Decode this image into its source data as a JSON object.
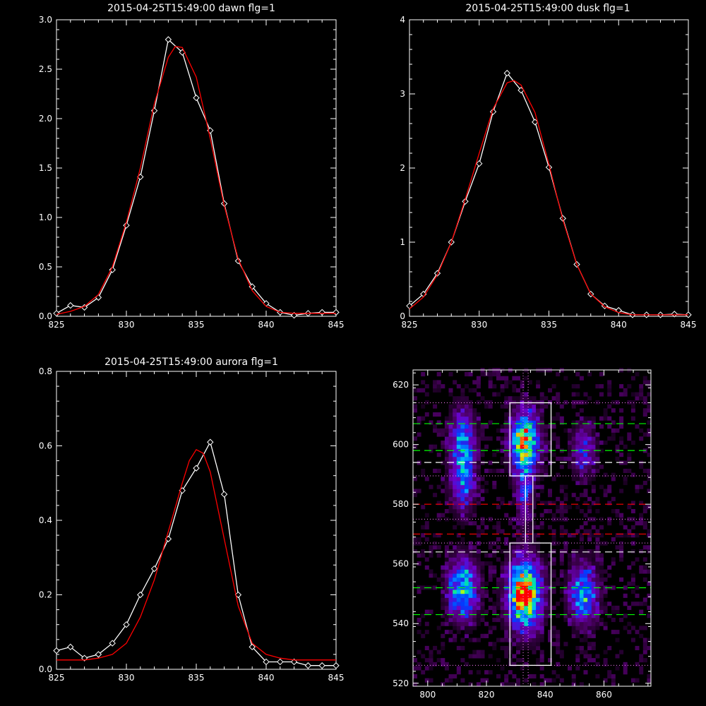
{
  "chart_data": [
    {
      "type": "line",
      "title": "2015-04-25T15:49:00 dawn flg=1",
      "xlim": [
        825,
        845
      ],
      "ylim": [
        0,
        3.0
      ],
      "xticks": [
        825,
        830,
        835,
        840,
        845
      ],
      "xtick_labels": [
        "825",
        "830",
        "835",
        "840",
        "845"
      ],
      "yticks": [
        0,
        0.5,
        1.0,
        1.5,
        2.0,
        2.5,
        3.0
      ],
      "ytick_labels": [
        "0.0",
        "0.5",
        "1.0",
        "1.5",
        "2.0",
        "2.5",
        "3.0"
      ],
      "series": [
        {
          "color": "#ffffff",
          "marker": "diamond",
          "x": [
            825,
            826,
            827,
            828,
            829,
            830,
            831,
            832,
            833,
            834,
            835,
            836,
            837,
            838,
            839,
            840,
            841,
            842,
            843,
            844,
            845
          ],
          "y": [
            0.03,
            0.11,
            0.09,
            0.19,
            0.47,
            0.92,
            1.41,
            2.08,
            2.8,
            2.67,
            2.21,
            1.88,
            1.14,
            0.56,
            0.3,
            0.13,
            0.04,
            0.01,
            0.03,
            0.04,
            0.04
          ]
        },
        {
          "color": "#ff0000",
          "marker": "none",
          "x": [
            825,
            826,
            827,
            828,
            829,
            830,
            831,
            832,
            833,
            833.5,
            834,
            835,
            836,
            837,
            838,
            839,
            840,
            841,
            842,
            843,
            844,
            845
          ],
          "y": [
            0.02,
            0.05,
            0.1,
            0.22,
            0.5,
            0.95,
            1.5,
            2.15,
            2.62,
            2.73,
            2.72,
            2.42,
            1.8,
            1.12,
            0.58,
            0.26,
            0.1,
            0.04,
            0.03,
            0.03,
            0.03,
            0.03
          ]
        }
      ]
    },
    {
      "type": "line",
      "title": "2015-04-25T15:49:00 dusk flg=1",
      "xlim": [
        825,
        845
      ],
      "ylim": [
        0,
        4
      ],
      "xticks": [
        825,
        830,
        835,
        840,
        845
      ],
      "xtick_labels": [
        "825",
        "830",
        "835",
        "840",
        "845"
      ],
      "yticks": [
        0,
        1,
        2,
        3,
        4
      ],
      "ytick_labels": [
        "0",
        "1",
        "2",
        "3",
        "4"
      ],
      "series": [
        {
          "color": "#ffffff",
          "marker": "diamond",
          "x": [
            825,
            826,
            827,
            828,
            829,
            830,
            831,
            832,
            833,
            834,
            835,
            836,
            837,
            838,
            839,
            840,
            841,
            842,
            843,
            844,
            845
          ],
          "y": [
            0.14,
            0.3,
            0.58,
            1.0,
            1.55,
            2.06,
            2.76,
            3.28,
            3.05,
            2.62,
            2.01,
            1.32,
            0.7,
            0.3,
            0.14,
            0.08,
            0.02,
            0.02,
            0.02,
            0.03,
            0.02
          ]
        },
        {
          "color": "#ff0000",
          "marker": "none",
          "x": [
            825,
            826,
            827,
            828,
            829,
            830,
            831,
            832,
            832.5,
            833,
            834,
            835,
            836,
            837,
            838,
            839,
            840,
            841,
            842,
            843,
            844,
            845
          ],
          "y": [
            0.1,
            0.26,
            0.56,
            1.0,
            1.58,
            2.2,
            2.8,
            3.15,
            3.18,
            3.12,
            2.75,
            2.05,
            1.3,
            0.7,
            0.3,
            0.13,
            0.05,
            0.02,
            0.02,
            0.02,
            0.02,
            0.02
          ]
        }
      ]
    },
    {
      "type": "line",
      "title": "2015-04-25T15:49:00 aurora flg=1",
      "xlim": [
        825,
        845
      ],
      "ylim": [
        0,
        0.8
      ],
      "xticks": [
        825,
        830,
        835,
        840,
        845
      ],
      "xtick_labels": [
        "825",
        "830",
        "835",
        "840",
        "845"
      ],
      "yticks": [
        0,
        0.2,
        0.4,
        0.6,
        0.8
      ],
      "ytick_labels": [
        "0.0",
        "0.2",
        "0.4",
        "0.6",
        "0.8"
      ],
      "series": [
        {
          "color": "#ffffff",
          "marker": "diamond",
          "x": [
            825,
            826,
            827,
            828,
            829,
            830,
            831,
            832,
            833,
            834,
            835,
            836,
            837,
            838,
            839,
            840,
            841,
            842,
            843,
            844,
            845
          ],
          "y": [
            0.05,
            0.06,
            0.03,
            0.04,
            0.07,
            0.12,
            0.2,
            0.27,
            0.35,
            0.48,
            0.54,
            0.61,
            0.47,
            0.2,
            0.06,
            0.02,
            0.02,
            0.02,
            0.01,
            0.01,
            0.01
          ]
        },
        {
          "color": "#ff0000",
          "marker": "none",
          "x": [
            825,
            826,
            827,
            828,
            829,
            830,
            831,
            832,
            833,
            834,
            834.5,
            835,
            835.5,
            836,
            837,
            838,
            839,
            840,
            841,
            842,
            843,
            844,
            845
          ],
          "y": [
            0.025,
            0.025,
            0.025,
            0.03,
            0.04,
            0.07,
            0.14,
            0.24,
            0.37,
            0.5,
            0.56,
            0.59,
            0.58,
            0.53,
            0.35,
            0.17,
            0.07,
            0.04,
            0.03,
            0.025,
            0.025,
            0.025,
            0.025
          ]
        }
      ]
    },
    {
      "type": "heatmap",
      "title": "",
      "xlim": [
        795,
        876
      ],
      "ylim": [
        519,
        625
      ],
      "xticks": [
        800,
        820,
        840,
        860
      ],
      "xtick_labels": [
        "800",
        "820",
        "840",
        "860"
      ],
      "yticks": [
        520,
        540,
        560,
        580,
        600,
        620
      ],
      "ytick_labels": [
        "520",
        "540",
        "560",
        "580",
        "600",
        "620"
      ],
      "colormap": "rainbow",
      "blobs": [
        {
          "x": 812,
          "y": 600,
          "sx": 3,
          "sy": 8,
          "amp": 0.5
        },
        {
          "x": 812,
          "y": 585,
          "sx": 3,
          "sy": 6,
          "amp": 0.3
        },
        {
          "x": 812,
          "y": 552,
          "sx": 3.5,
          "sy": 7,
          "amp": 0.6
        },
        {
          "x": 833,
          "y": 601,
          "sx": 3.5,
          "sy": 7,
          "amp": 0.75
        },
        {
          "x": 833,
          "y": 584,
          "sx": 2,
          "sy": 8,
          "amp": 0.32
        },
        {
          "x": 833,
          "y": 550,
          "sx": 4,
          "sy": 8,
          "amp": 0.9
        },
        {
          "x": 832,
          "y": 548,
          "sx": 1.5,
          "sy": 2,
          "amp": 0.3
        },
        {
          "x": 853,
          "y": 598,
          "sx": 3,
          "sy": 6,
          "amp": 0.3
        },
        {
          "x": 853,
          "y": 550,
          "sx": 3.5,
          "sy": 7,
          "amp": 0.5
        }
      ],
      "boxes": [
        {
          "x0": 828,
          "x1": 842,
          "y0": 589.5,
          "y1": 614,
          "color": "#ffffff"
        },
        {
          "x0": 828,
          "x1": 842,
          "y0": 526,
          "y1": 567,
          "color": "#ffffff"
        },
        {
          "x0": 833.3,
          "x1": 835.8,
          "y0": 567,
          "y1": 589.5,
          "color": "#ffffff"
        }
      ],
      "hlines": [
        {
          "y": 614,
          "style": "dotted",
          "color": "#ff80ff"
        },
        {
          "y": 607,
          "style": "dashed",
          "color": "#00ff00"
        },
        {
          "y": 598,
          "style": "dashed",
          "color": "#00ff00"
        },
        {
          "y": 594,
          "style": "dashed",
          "color": "#ffffff"
        },
        {
          "y": 589.5,
          "style": "dotted",
          "color": "#ff80ff"
        },
        {
          "y": 580,
          "style": "dashed",
          "color": "#ff0000"
        },
        {
          "y": 575,
          "style": "dotted",
          "color": "#ff80ff"
        },
        {
          "y": 570,
          "style": "dashed",
          "color": "#ff0000"
        },
        {
          "y": 567,
          "style": "dotted",
          "color": "#ff80ff"
        },
        {
          "y": 564,
          "style": "dashed",
          "color": "#ffffff"
        },
        {
          "y": 552,
          "style": "dashed",
          "color": "#00ff00"
        },
        {
          "y": 543,
          "style": "dashed",
          "color": "#00ff00"
        },
        {
          "y": 526,
          "style": "dotted",
          "color": "#ff80ff"
        }
      ],
      "vlines": [
        {
          "x": 832.5,
          "style": "dotted",
          "color": "#ff80ff"
        },
        {
          "x": 834.2,
          "style": "dotted",
          "color": "#ff80ff"
        }
      ]
    }
  ]
}
